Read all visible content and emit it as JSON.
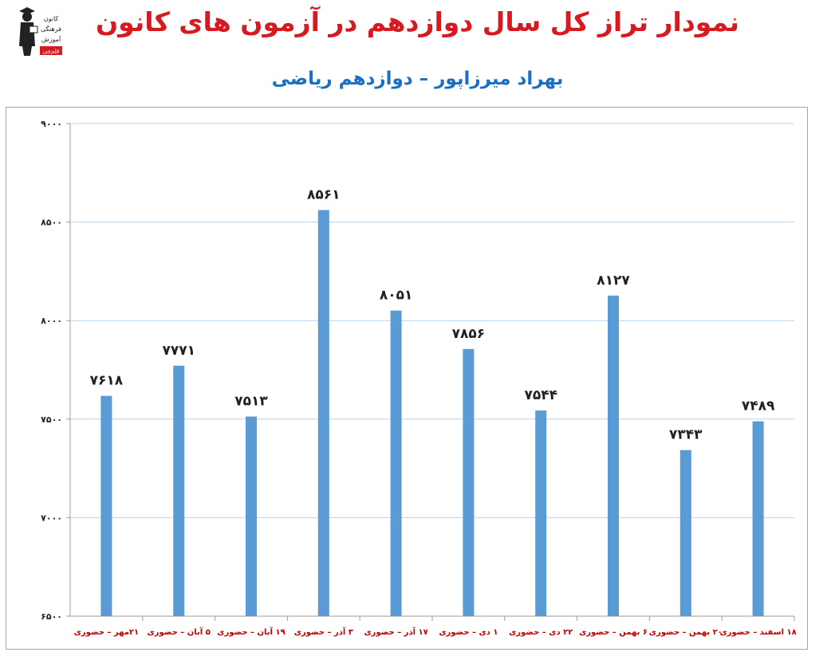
{
  "header": {
    "title": "نمودار تراز کل سال دوازدهم در آزمون های کانون",
    "subtitle": "بهراد میرزاپور – دوازدهم ریاضی",
    "logo_text": [
      "کانون",
      "فرهنگی",
      "آموزش",
      "قلم‌چی"
    ]
  },
  "colors": {
    "title": "#d71920",
    "subtitle": "#1a6fc4",
    "bar": "#5b9bd5",
    "category_label": "#c00000",
    "grid": "#b9d3ee"
  },
  "chart_data": {
    "type": "bar",
    "title": "",
    "xlabel": "",
    "ylabel": "",
    "categories": [
      "۲۱مهر – حضوری",
      "۵ آبان – حضوری",
      "۱۹ آبان – حضوری",
      "۳ آذر – حضوری",
      "۱۷ آذر – حضوری",
      "۱ دی – حضوری",
      "۲۲ دی – حضوری",
      "۶ بهمن – حضوری",
      "۲۰ بهمن – حضوری",
      "۱۸ اسفند – حضوری"
    ],
    "values": [
      7618,
      7771,
      7513,
      8561,
      8051,
      7856,
      7544,
      8127,
      7343,
      7489
    ],
    "value_labels": [
      "۷۶۱۸",
      "۷۷۷۱",
      "۷۵۱۳",
      "۸۵۶۱",
      "۸۰۵۱",
      "۷۸۵۶",
      "۷۵۴۴",
      "۸۱۲۷",
      "۷۳۴۳",
      "۷۴۸۹"
    ],
    "ylim": [
      6500,
      9000
    ],
    "yticks": [
      6500,
      7000,
      7500,
      8000,
      8500,
      9000
    ],
    "ytick_labels": [
      "۶۵۰۰",
      "۷۰۰۰",
      "۷۵۰۰",
      "۸۰۰۰",
      "۸۵۰۰",
      "۹۰۰۰"
    ],
    "grid": true,
    "legend": false
  }
}
